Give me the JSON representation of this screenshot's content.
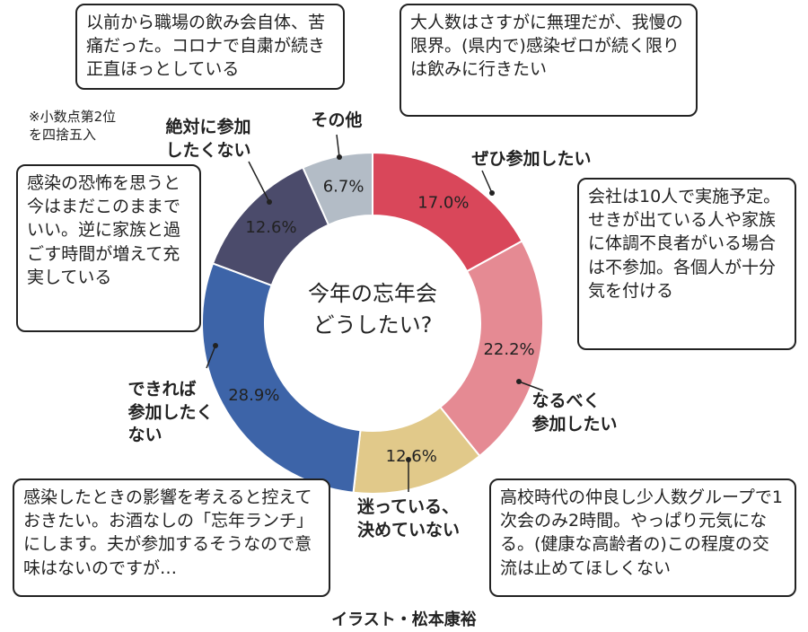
{
  "chart_data": {
    "type": "donut",
    "title": "今年の忘年会\nどうしたい?",
    "categories": [
      "ぜひ参加したい",
      "なるべく\n参加したい",
      "迷っている、\n決めていない",
      "できれば\n参加したく\nない",
      "絶対に参加\nしたくない",
      "その他"
    ],
    "values": [
      17.0,
      22.2,
      12.6,
      28.9,
      12.6,
      6.7
    ],
    "value_labels": [
      "17.0%",
      "22.2%",
      "12.6%",
      "28.9%",
      "12.6%",
      "6.7%"
    ],
    "colors": [
      "#d9475a",
      "#e58a93",
      "#e1c98a",
      "#3d64a8",
      "#4b4b6b",
      "#b3bcc6"
    ],
    "note": "※小数点第2位\nを四捨五入",
    "annotations": [
      "以前から職場の飲み会自体、苦痛だった。コロナで自粛が続き正直ほっとしている",
      "大人数はさすがに無理だが、我慢の限界。(県内で)感染ゼロが続く限りは飲みに行きたい",
      "会社は10人で実施予定。せきが出ている人や家族に体調不良者がいる場合は不参加。各個人が十分気を付ける",
      "感染の恐怖を思うと今はまだこのままでいい。逆に家族と過ごす時間が増えて充実している",
      "感染したときの影響を考えると控えておきたい。お酒なしの「忘年ランチ」にします。夫が参加するそうなので意味はないのですが…",
      "高校時代の仲良し少人数グループで1次会のみ2時間。やっぱり元気になる。(健康な高齢者の)この程度の交流は止めてほしくない"
    ],
    "credit": "イラスト・松本康裕"
  }
}
